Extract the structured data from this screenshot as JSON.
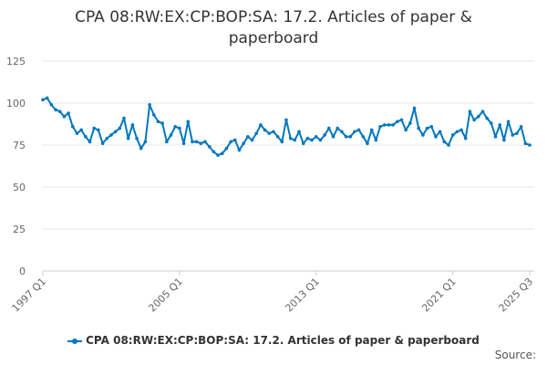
{
  "chart_data": {
    "type": "line",
    "title": "CPA 08:RW:EX:CP:BOP:SA: 17.2. Articles of paper & paperboard",
    "xlabel": "",
    "ylabel": "",
    "start": "1997 Q1",
    "end": "2025 Q3",
    "x_tick_labels": [
      "1997 Q1",
      "2005 Q1",
      "2013 Q1",
      "2021 Q1",
      "2025 Q3"
    ],
    "y_ticks": [
      0,
      25,
      50,
      75,
      100,
      125
    ],
    "ylim": [
      0,
      125
    ],
    "grid": "horizontal",
    "legend_position": "bottom",
    "color": "#0077be",
    "series": [
      {
        "name": "CPA 08:RW:EX:CP:BOP:SA: 17.2. Articles of paper & paperboard",
        "values": [
          102,
          103,
          99,
          96,
          95,
          92,
          94,
          86,
          82,
          84,
          80,
          77,
          85,
          84,
          76,
          79,
          81,
          83,
          85,
          91,
          79,
          87,
          79,
          73,
          77,
          99,
          93,
          89,
          88,
          77,
          81,
          86,
          85,
          76,
          89,
          77,
          77,
          76,
          77,
          74,
          71,
          69,
          70,
          73,
          77,
          78,
          72,
          76,
          80,
          78,
          82,
          87,
          84,
          82,
          83,
          80,
          77,
          90,
          79,
          78,
          83,
          76,
          79,
          78,
          80,
          78,
          81,
          85,
          80,
          85,
          83,
          80,
          80,
          83,
          84,
          80,
          76,
          84,
          78,
          86,
          87,
          87,
          87,
          89,
          90,
          84,
          88,
          97,
          85,
          81,
          85,
          86,
          80,
          83,
          77,
          75,
          81,
          83,
          84,
          79,
          95,
          90,
          92,
          95,
          91,
          88,
          80,
          87,
          78,
          89,
          81,
          82,
          86,
          76,
          75
        ]
      }
    ]
  },
  "source_label": "Source:"
}
